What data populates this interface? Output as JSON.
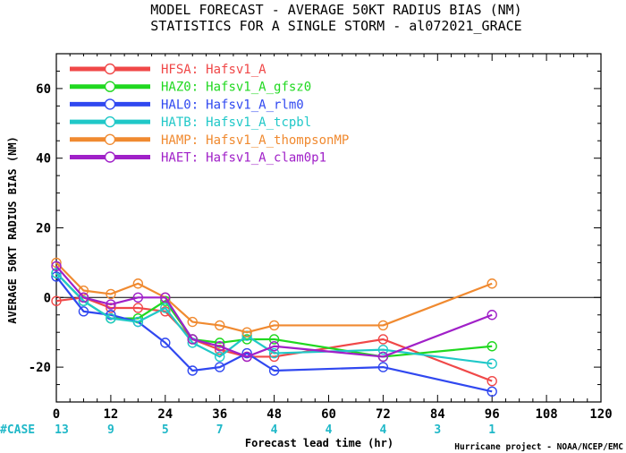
{
  "chart_data": {
    "type": "line",
    "title": "MODEL FORECAST - AVERAGE 50KT RADIUS BIAS (NM)",
    "subtitle": "STATISTICS FOR A SINGLE STORM - al072021_GRACE",
    "xlabel": "Forecast lead time (hr)",
    "ylabel": "AVERAGE 50KT RADIUS BIAS (NM)",
    "xlim": [
      0,
      120
    ],
    "ylim": [
      -30,
      70
    ],
    "x_ticks": [
      0,
      12,
      24,
      36,
      48,
      60,
      72,
      84,
      96,
      108,
      120
    ],
    "y_ticks": [
      -20,
      0,
      20,
      40,
      60
    ],
    "zero_line": true,
    "legend_position": "top-left",
    "series": [
      {
        "name": "HFSA",
        "label": "Hafsv1_A",
        "color": "#f04848",
        "x": [
          0,
          6,
          12,
          18,
          24,
          30,
          36,
          42,
          48,
          72,
          96
        ],
        "y": [
          -1,
          0,
          -3,
          -3,
          -4,
          -12,
          -15,
          -17,
          -17,
          -12,
          -24
        ]
      },
      {
        "name": "HAZ0",
        "label": "Hafsv1_A_gfsz0",
        "color": "#20d820",
        "x": [
          0,
          6,
          12,
          18,
          24,
          30,
          36,
          42,
          48,
          72,
          96
        ],
        "y": [
          7,
          -1,
          -6,
          -6,
          -1,
          -12,
          -13,
          -12,
          -12,
          -17,
          -14
        ]
      },
      {
        "name": "HAL0",
        "label": "Hafsv1_A_rlm0",
        "color": "#3048f0",
        "x": [
          0,
          6,
          12,
          18,
          24,
          30,
          36,
          42,
          48,
          72,
          96
        ],
        "y": [
          6,
          -4,
          -5,
          -7,
          -13,
          -21,
          -20,
          -16,
          -21,
          -20,
          -27
        ]
      },
      {
        "name": "HATB",
        "label": "Hafsv1_A_tcpbl",
        "color": "#20c8c8",
        "x": [
          0,
          6,
          12,
          18,
          24,
          30,
          36,
          42,
          48,
          72,
          96
        ],
        "y": [
          7,
          -1,
          -6,
          -7,
          -3,
          -13,
          -17,
          -11,
          -16,
          -15,
          -19
        ]
      },
      {
        "name": "HAMP",
        "label": "Hafsv1_A_thompsonMP",
        "color": "#f08a30",
        "x": [
          0,
          6,
          12,
          18,
          24,
          30,
          36,
          42,
          48,
          72,
          96
        ],
        "y": [
          10,
          2,
          1,
          4,
          0,
          -7,
          -8,
          -10,
          -8,
          -8,
          4
        ]
      },
      {
        "name": "HAET",
        "label": "Hafsv1_A_clam0p1",
        "color": "#a020c8",
        "x": [
          0,
          6,
          12,
          18,
          24,
          30,
          36,
          42,
          48,
          72,
          96
        ],
        "y": [
          9,
          0,
          -2,
          0,
          0,
          -12,
          -14,
          -17,
          -14,
          -17,
          -5
        ]
      }
    ],
    "case_label": "#CASE",
    "case_counts": [
      {
        "x": 0,
        "n": "13"
      },
      {
        "x": 12,
        "n": "9"
      },
      {
        "x": 24,
        "n": "5"
      },
      {
        "x": 36,
        "n": "7"
      },
      {
        "x": 48,
        "n": "4"
      },
      {
        "x": 60,
        "n": "4"
      },
      {
        "x": 72,
        "n": "4"
      },
      {
        "x": 84,
        "n": "3"
      },
      {
        "x": 96,
        "n": "1"
      }
    ],
    "credit": "Hurricane project - NOAA/NCEP/EMC",
    "case_color": "#20b8c8"
  }
}
